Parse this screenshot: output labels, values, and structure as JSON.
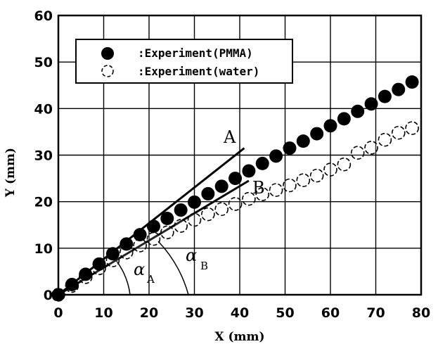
{
  "chart_data": {
    "type": "scatter",
    "xlabel": "X (mm)",
    "ylabel": "Y (mm)",
    "xlim": [
      0,
      80
    ],
    "ylim": [
      0,
      60
    ],
    "x_ticks": [
      "0",
      "10",
      "20",
      "30",
      "40",
      "50",
      "60",
      "70",
      "80"
    ],
    "y_ticks": [
      "0",
      "10",
      "20",
      "30",
      "40",
      "50",
      "60"
    ],
    "grid": true,
    "legend_position": "top-left",
    "series": [
      {
        "name": ":Experiment(PMMA)",
        "marker": "filled-circle",
        "color": "#000000",
        "x": [
          0,
          3,
          6,
          9,
          12,
          15,
          18,
          21,
          24,
          27,
          30,
          33,
          36,
          39,
          42,
          45,
          48,
          51,
          54,
          57,
          60,
          63,
          66,
          69,
          72,
          75,
          78
        ],
        "y": [
          0,
          2.2,
          4.4,
          6.6,
          8.8,
          10.9,
          12.9,
          14.7,
          16.4,
          18.2,
          19.9,
          21.7,
          23.3,
          25.0,
          26.6,
          28.2,
          29.8,
          31.5,
          33.0,
          34.6,
          36.3,
          37.8,
          39.4,
          41.0,
          42.6,
          44.1,
          45.7
        ]
      },
      {
        "name": ":Experiment(water)",
        "marker": "open-circle",
        "color": "#000000",
        "x": [
          0,
          3,
          6,
          9,
          12,
          15,
          18,
          21,
          24,
          27,
          30,
          33,
          36,
          39,
          42,
          45,
          48,
          51,
          54,
          57,
          60,
          63,
          66,
          69,
          72,
          75,
          78
        ],
        "y": [
          0,
          1.9,
          3.8,
          5.7,
          7.4,
          9.1,
          10.6,
          12.0,
          13.4,
          14.8,
          16.1,
          17.3,
          18.4,
          19.5,
          20.6,
          21.6,
          22.5,
          23.5,
          24.6,
          25.6,
          26.9,
          28.0,
          30.5,
          31.6,
          33.3,
          34.8,
          35.8
        ]
      }
    ],
    "reference_lines": [
      {
        "label": "A",
        "x": [
          0,
          41
        ],
        "y": [
          0,
          31.5
        ]
      },
      {
        "label": "B",
        "x": [
          0,
          42
        ],
        "y": [
          0,
          24.5
        ]
      }
    ],
    "annotations": [
      {
        "symbol": "α",
        "subscript": "A"
      },
      {
        "symbol": "α",
        "subscript": "B"
      }
    ]
  }
}
